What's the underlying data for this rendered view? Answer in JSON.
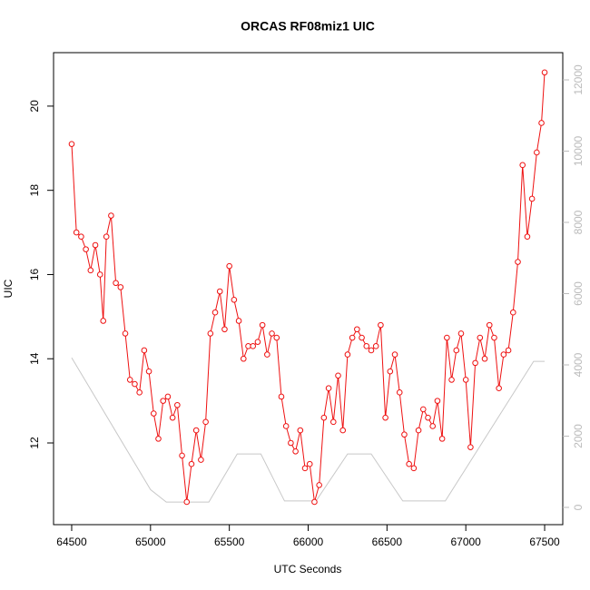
{
  "chart_data": {
    "type": "line",
    "title": "ORCAS RF08miz1 UIC",
    "xlabel": "UTC Seconds",
    "ylabel": "UIC",
    "xlim": [
      64385,
      67615
    ],
    "xticks": [
      64500,
      65000,
      65500,
      66000,
      66500,
      67000,
      67500
    ],
    "ylim": [
      10.06,
      21.27
    ],
    "yticks": [
      12,
      14,
      16,
      18,
      20
    ],
    "y2lim": [
      -484,
      12764
    ],
    "y2ticks": [
      0,
      2000,
      4000,
      6000,
      8000,
      10000,
      12000
    ],
    "series": [
      {
        "color": "#ee1111",
        "markers": true,
        "x": [
          64500,
          64530,
          64560,
          64590,
          64620,
          64650,
          64680,
          64700,
          64720,
          64750,
          64780,
          64810,
          64840,
          64870,
          64900,
          64930,
          64960,
          64990,
          65020,
          65050,
          65080,
          65110,
          65140,
          65170,
          65200,
          65230,
          65260,
          65290,
          65320,
          65350,
          65380,
          65410,
          65440,
          65470,
          65500,
          65530,
          65560,
          65590,
          65620,
          65650,
          65680,
          65710,
          65740,
          65770,
          65800,
          65830,
          65860,
          65890,
          65920,
          65950,
          65980,
          66010,
          66040,
          66070,
          66100,
          66130,
          66160,
          66190,
          66220,
          66250,
          66280,
          66310,
          66340,
          66370,
          66400,
          66430,
          66460,
          66490,
          66520,
          66550,
          66580,
          66610,
          66640,
          66670,
          66700,
          66730,
          66760,
          66790,
          66820,
          66850,
          66880,
          66910,
          66940,
          66970,
          67000,
          67030,
          67060,
          67090,
          67120,
          67150,
          67180,
          67210,
          67240,
          67270,
          67300,
          67330,
          67360,
          67390,
          67420,
          67450,
          67480,
          67500
        ],
        "values": [
          19.1,
          17.0,
          16.9,
          16.6,
          16.1,
          16.7,
          16.0,
          14.9,
          16.9,
          17.4,
          15.8,
          15.7,
          14.6,
          13.5,
          13.4,
          13.2,
          14.2,
          13.7,
          12.7,
          12.1,
          13.0,
          13.1,
          12.6,
          12.9,
          11.7,
          10.6,
          11.5,
          12.3,
          11.6,
          12.5,
          14.6,
          15.1,
          15.6,
          14.7,
          16.2,
          15.4,
          14.9,
          14.0,
          14.3,
          14.3,
          14.4,
          14.8,
          14.1,
          14.6,
          14.5,
          13.1,
          12.4,
          12.0,
          11.8,
          12.3,
          11.4,
          11.5,
          10.6,
          11.0,
          12.6,
          13.3,
          12.5,
          13.6,
          12.3,
          14.1,
          14.5,
          14.7,
          14.5,
          14.3,
          14.2,
          14.3,
          14.8,
          12.6,
          13.7,
          14.1,
          13.2,
          12.2,
          11.5,
          11.4,
          12.3,
          12.8,
          12.6,
          12.4,
          13.0,
          12.1,
          14.5,
          13.5,
          14.2,
          14.6,
          13.5,
          11.9,
          13.9,
          14.5,
          14.0,
          14.8,
          14.5,
          13.3,
          14.1,
          14.2,
          15.1,
          16.3,
          18.6,
          16.9,
          17.8,
          18.9,
          19.6,
          20.8
        ]
      },
      {
        "color": "#c8c8c8",
        "axis": "y2",
        "markers": false,
        "x": [
          64500,
          65000,
          65100,
          65370,
          65550,
          65700,
          65850,
          66050,
          66250,
          66400,
          66600,
          66870,
          67430,
          67500
        ],
        "values": [
          4200,
          500,
          150,
          150,
          1500,
          1500,
          180,
          180,
          1500,
          1500,
          180,
          180,
          4100,
          4100
        ]
      }
    ]
  }
}
